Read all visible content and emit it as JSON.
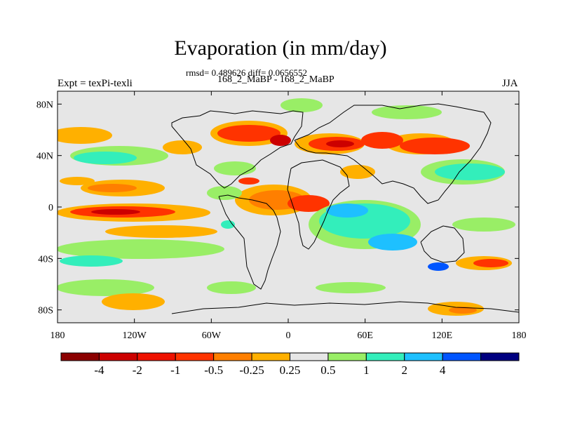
{
  "title": "Evaporation (in mm/day)",
  "stats": "rmsd= 0.489626 diff= 0.0656552",
  "cases": "168_2_MaBP - 168_2_MaBP",
  "experiment": "Expt = texPi-texli",
  "season": "JJA",
  "chart_data": {
    "type": "heatmap",
    "title": "Evaporation (in mm/day)",
    "projection": "cylindrical-equidistant",
    "x_ticks": [
      "180",
      "120W",
      "60W",
      "0",
      "60E",
      "120E",
      "180"
    ],
    "y_ticks": [
      "80N",
      "40N",
      "0",
      "40S",
      "80S"
    ],
    "lon_range": [
      -180,
      180
    ],
    "lat_range": [
      -90,
      90
    ],
    "colorbar": {
      "levels": [
        "-4",
        "-2",
        "-1",
        "-0.5",
        "-0.25",
        "0.25",
        "0.5",
        "1",
        "2",
        "4"
      ],
      "colors": [
        "#8b0000",
        "#cc0000",
        "#ee1100",
        "#ff3300",
        "#ff7f00",
        "#ffb000",
        "#e6e6e6",
        "#99ee66",
        "#33eebb",
        "#1ec0ff",
        "#0055ff",
        "#000080"
      ]
    }
  }
}
